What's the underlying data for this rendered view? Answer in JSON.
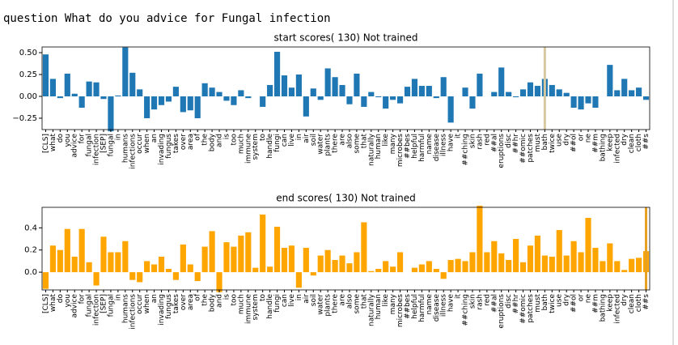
{
  "question": "question What do you advice for Fungal infection",
  "chart_data": [
    {
      "type": "bar",
      "title": "start scores( 130) Not trained",
      "categories": [
        "[CLS]",
        "what",
        "do",
        "you",
        "advice",
        "for",
        "fungal",
        "infection",
        "[SEP]",
        "fungal",
        "in",
        "humans",
        "infections",
        "occur",
        "when",
        "an",
        "invading",
        "fungus",
        "takes",
        "over",
        "area",
        "of",
        "the",
        "body",
        "and",
        "is",
        "too",
        "much",
        "immune",
        "system",
        "to",
        "handle",
        "fungi",
        "can",
        "live",
        "in",
        "air",
        "soil",
        "water",
        "plants",
        "there",
        "are",
        "also",
        "some",
        "that",
        "naturally",
        "human",
        "like",
        "many",
        "microbes",
        "##bes",
        "helpful",
        "harmful",
        "name",
        "disease",
        "illness",
        "have",
        "it",
        "##ching",
        "skin",
        "rash",
        "red",
        "##al",
        "eruptions",
        "disc",
        "##hr",
        "##omic",
        "patches",
        "must",
        "bath",
        "twice",
        "use",
        "dry",
        "##ol",
        "or",
        "ne",
        "##m",
        "bathing",
        "keep",
        "infected",
        "dry",
        "clean",
        "cloth",
        "##s"
      ],
      "values": [
        0.48,
        0.2,
        -0.02,
        0.26,
        0.03,
        -0.13,
        0.17,
        0.16,
        -0.03,
        -0.4,
        0.01,
        0.56,
        0.27,
        0.08,
        -0.25,
        -0.15,
        -0.1,
        -0.06,
        0.11,
        -0.18,
        -0.16,
        -0.25,
        0.15,
        0.1,
        0.05,
        -0.05,
        -0.1,
        0.07,
        -0.02,
        0.0,
        -0.12,
        0.13,
        0.51,
        0.24,
        0.1,
        0.25,
        -0.23,
        0.09,
        -0.04,
        0.32,
        0.22,
        0.13,
        -0.09,
        0.26,
        -0.12,
        0.05,
        -0.01,
        -0.14,
        -0.04,
        -0.08,
        0.11,
        0.2,
        0.12,
        0.12,
        -0.02,
        0.22,
        -0.3,
        0.0,
        0.1,
        -0.14,
        0.26,
        0.0,
        0.05,
        0.33,
        0.05,
        -0.01,
        0.08,
        0.16,
        0.12,
        0.2,
        0.13,
        0.08,
        0.04,
        -0.13,
        -0.15,
        -0.08,
        -0.13,
        0.0,
        0.36,
        0.07,
        0.2,
        0.07,
        0.1,
        -0.04
      ],
      "color": "#1f77b4",
      "ylim": [
        -0.38,
        0.565
      ],
      "yticks": [
        {
          "value": -0.25,
          "label": "−0.25"
        },
        {
          "value": 0,
          "label": "0.00"
        },
        {
          "value": 0.25,
          "label": "0.25"
        },
        {
          "value": 0.5,
          "label": "0.50"
        }
      ],
      "highlight_index": 69,
      "highlight_color": "#d8c8a0"
    },
    {
      "type": "bar",
      "title": "end scores( 130) Not trained",
      "categories": [
        "[CLS]",
        "what",
        "do",
        "you",
        "advice",
        "for",
        "fungal",
        "infection",
        "[SEP]",
        "fungal",
        "in",
        "humans",
        "infections",
        "occur",
        "when",
        "an",
        "invading",
        "fungus",
        "takes",
        "over",
        "area",
        "of",
        "the",
        "body",
        "and",
        "is",
        "too",
        "much",
        "immune",
        "system",
        "to",
        "handle",
        "fungi",
        "can",
        "live",
        "in",
        "air",
        "soil",
        "water",
        "plants",
        "there",
        "are",
        "also",
        "some",
        "that",
        "naturally",
        "human",
        "like",
        "many",
        "microbes",
        "##bes",
        "helpful",
        "harmful",
        "name",
        "disease",
        "illness",
        "have",
        "it",
        "##ching",
        "skin",
        "rash",
        "red",
        "##al",
        "eruptions",
        "disc",
        "##hr",
        "##omic",
        "patches",
        "must",
        "bath",
        "twice",
        "use",
        "dry",
        "##ol",
        "or",
        "ne",
        "##m",
        "bathing",
        "keep",
        "infected",
        "dry",
        "clean",
        "cloth",
        "##s"
      ],
      "values": [
        -0.15,
        0.24,
        0.2,
        0.39,
        0.14,
        0.39,
        0.09,
        -0.12,
        0.32,
        0.18,
        0.18,
        0.28,
        -0.07,
        -0.09,
        0.1,
        0.07,
        0.14,
        0.03,
        -0.07,
        0.25,
        0.07,
        -0.08,
        0.23,
        0.37,
        -0.18,
        0.27,
        0.23,
        0.33,
        0.36,
        0.04,
        0.52,
        0.05,
        0.41,
        0.22,
        0.24,
        -0.14,
        0.22,
        -0.03,
        0.15,
        0.2,
        0.11,
        0.15,
        0.08,
        0.18,
        0.45,
        0.01,
        0.03,
        0.1,
        0.05,
        0.18,
        0.0,
        0.04,
        0.07,
        0.1,
        0.03,
        -0.06,
        0.11,
        0.12,
        0.1,
        0.18,
        0.6,
        0.18,
        0.28,
        0.17,
        0.11,
        0.3,
        0.09,
        0.24,
        0.33,
        0.15,
        0.14,
        0.38,
        0.15,
        0.28,
        0.18,
        0.49,
        0.22,
        0.1,
        0.26,
        0.1,
        0.02,
        0.12,
        0.13,
        0.19
      ],
      "color": "#ffa500",
      "ylim": [
        -0.16,
        0.585
      ],
      "yticks": [
        {
          "value": 0,
          "label": "0.0"
        },
        {
          "value": 0.2,
          "label": "0.2"
        },
        {
          "value": 0.4,
          "label": "0.4"
        }
      ],
      "highlight_index": 83,
      "highlight_color": "#e8a020"
    }
  ]
}
